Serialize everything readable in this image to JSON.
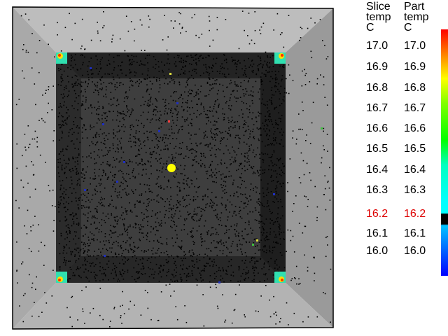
{
  "legend": {
    "slice_header": "Slice\ntemp\nC",
    "part_header": "Part\ntemp\nC",
    "rows": [
      {
        "slice": "17.0",
        "part": "17.0",
        "highlight": false
      },
      {
        "slice": "16.9",
        "part": "16.9",
        "highlight": false
      },
      {
        "slice": "16.8",
        "part": "16.8",
        "highlight": false
      },
      {
        "slice": "16.7",
        "part": "16.7",
        "highlight": false
      },
      {
        "slice": "16.6",
        "part": "16.6",
        "highlight": false
      },
      {
        "slice": "16.5",
        "part": "16.5",
        "highlight": false
      },
      {
        "slice": "16.4",
        "part": "16.4",
        "highlight": false
      },
      {
        "slice": "16.3",
        "part": "16.3",
        "highlight": false
      },
      {
        "slice": "16.2",
        "part": "16.2",
        "highlight": true
      },
      {
        "slice": "16.1",
        "part": "16.1",
        "highlight": false
      },
      {
        "slice": "16.0",
        "part": "16.0",
        "highlight": false
      }
    ],
    "highlight_color": "#dd0000",
    "text_color": "#000000",
    "colorbar_colors": [
      "#ff0000",
      "#ff8000",
      "#ffff00",
      "#80ff00",
      "#00ff00",
      "#00ffc0",
      "#00ffff",
      "#000000",
      "#00c0ff",
      "#0060ff",
      "#0000ff"
    ]
  },
  "scene": {
    "outer_frame_color": "#a8a8a8",
    "room_floor_color": "#2a2a2a",
    "inner_slab_color": "#3c3c3c",
    "particle_color": "#000000",
    "highlight_particle_color": "#ffff00",
    "vent_icons": [
      "vent-top-left",
      "vent-top-right",
      "vent-bottom-left",
      "vent-bottom-right"
    ]
  }
}
